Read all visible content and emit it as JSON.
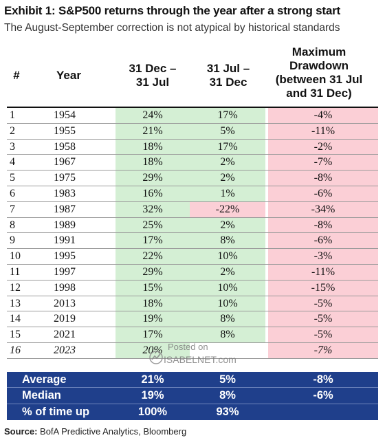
{
  "title": "Exhibit 1: S&P500 returns through the year after a strong start",
  "subtitle": "The August-September correction is not atypical by historical standards",
  "source_label": "Source:",
  "source_text": "BofA Predictive Analytics, Bloomberg",
  "watermark": {
    "posted": "Posted on",
    "site": "ISABELNET.com"
  },
  "colors": {
    "positive_fill": "#d4efd4",
    "negative_fill": "#fbcfd6",
    "summary_fill": "#1f3f8b"
  },
  "chart_data": {
    "type": "table",
    "title": "Exhibit 1: S&P500 returns through the year after a strong start",
    "columns": {
      "num": "#",
      "year": "Year",
      "c1": "31 Dec –\n31 Jul",
      "c2": "31 Jul –\n31 Dec",
      "c3": "Maximum\nDrawdown\n(between 31 Jul\nand 31 Dec)"
    },
    "rows": [
      {
        "num": "1",
        "year": "1954",
        "c1": "24%",
        "c2": "17%",
        "c3": "-4%"
      },
      {
        "num": "2",
        "year": "1955",
        "c1": "21%",
        "c2": "5%",
        "c3": "-11%"
      },
      {
        "num": "3",
        "year": "1958",
        "c1": "18%",
        "c2": "17%",
        "c3": "-2%"
      },
      {
        "num": "4",
        "year": "1967",
        "c1": "18%",
        "c2": "2%",
        "c3": "-7%"
      },
      {
        "num": "5",
        "year": "1975",
        "c1": "29%",
        "c2": "2%",
        "c3": "-8%"
      },
      {
        "num": "6",
        "year": "1983",
        "c1": "16%",
        "c2": "1%",
        "c3": "-6%"
      },
      {
        "num": "7",
        "year": "1987",
        "c1": "32%",
        "c2": "-22%",
        "c3": "-34%"
      },
      {
        "num": "8",
        "year": "1989",
        "c1": "25%",
        "c2": "2%",
        "c3": "-8%"
      },
      {
        "num": "9",
        "year": "1991",
        "c1": "17%",
        "c2": "8%",
        "c3": "-6%"
      },
      {
        "num": "10",
        "year": "1995",
        "c1": "22%",
        "c2": "10%",
        "c3": "-3%"
      },
      {
        "num": "11",
        "year": "1997",
        "c1": "29%",
        "c2": "2%",
        "c3": "-11%"
      },
      {
        "num": "12",
        "year": "1998",
        "c1": "15%",
        "c2": "10%",
        "c3": "-15%"
      },
      {
        "num": "13",
        "year": "2013",
        "c1": "18%",
        "c2": "10%",
        "c3": "-5%"
      },
      {
        "num": "14",
        "year": "2019",
        "c1": "19%",
        "c2": "8%",
        "c3": "-5%"
      },
      {
        "num": "15",
        "year": "2021",
        "c1": "17%",
        "c2": "8%",
        "c3": "-5%"
      },
      {
        "num": "16",
        "year": "2023",
        "c1": "20%",
        "c2": "",
        "c3": "-7%"
      }
    ],
    "summary": [
      {
        "label": "Average",
        "c1": "21%",
        "c2": "5%",
        "c3": "-8%"
      },
      {
        "label": "Median",
        "c1": "19%",
        "c2": "8%",
        "c3": "-6%"
      },
      {
        "label": "% of time up",
        "c1": "100%",
        "c2": "93%",
        "c3": ""
      }
    ]
  }
}
